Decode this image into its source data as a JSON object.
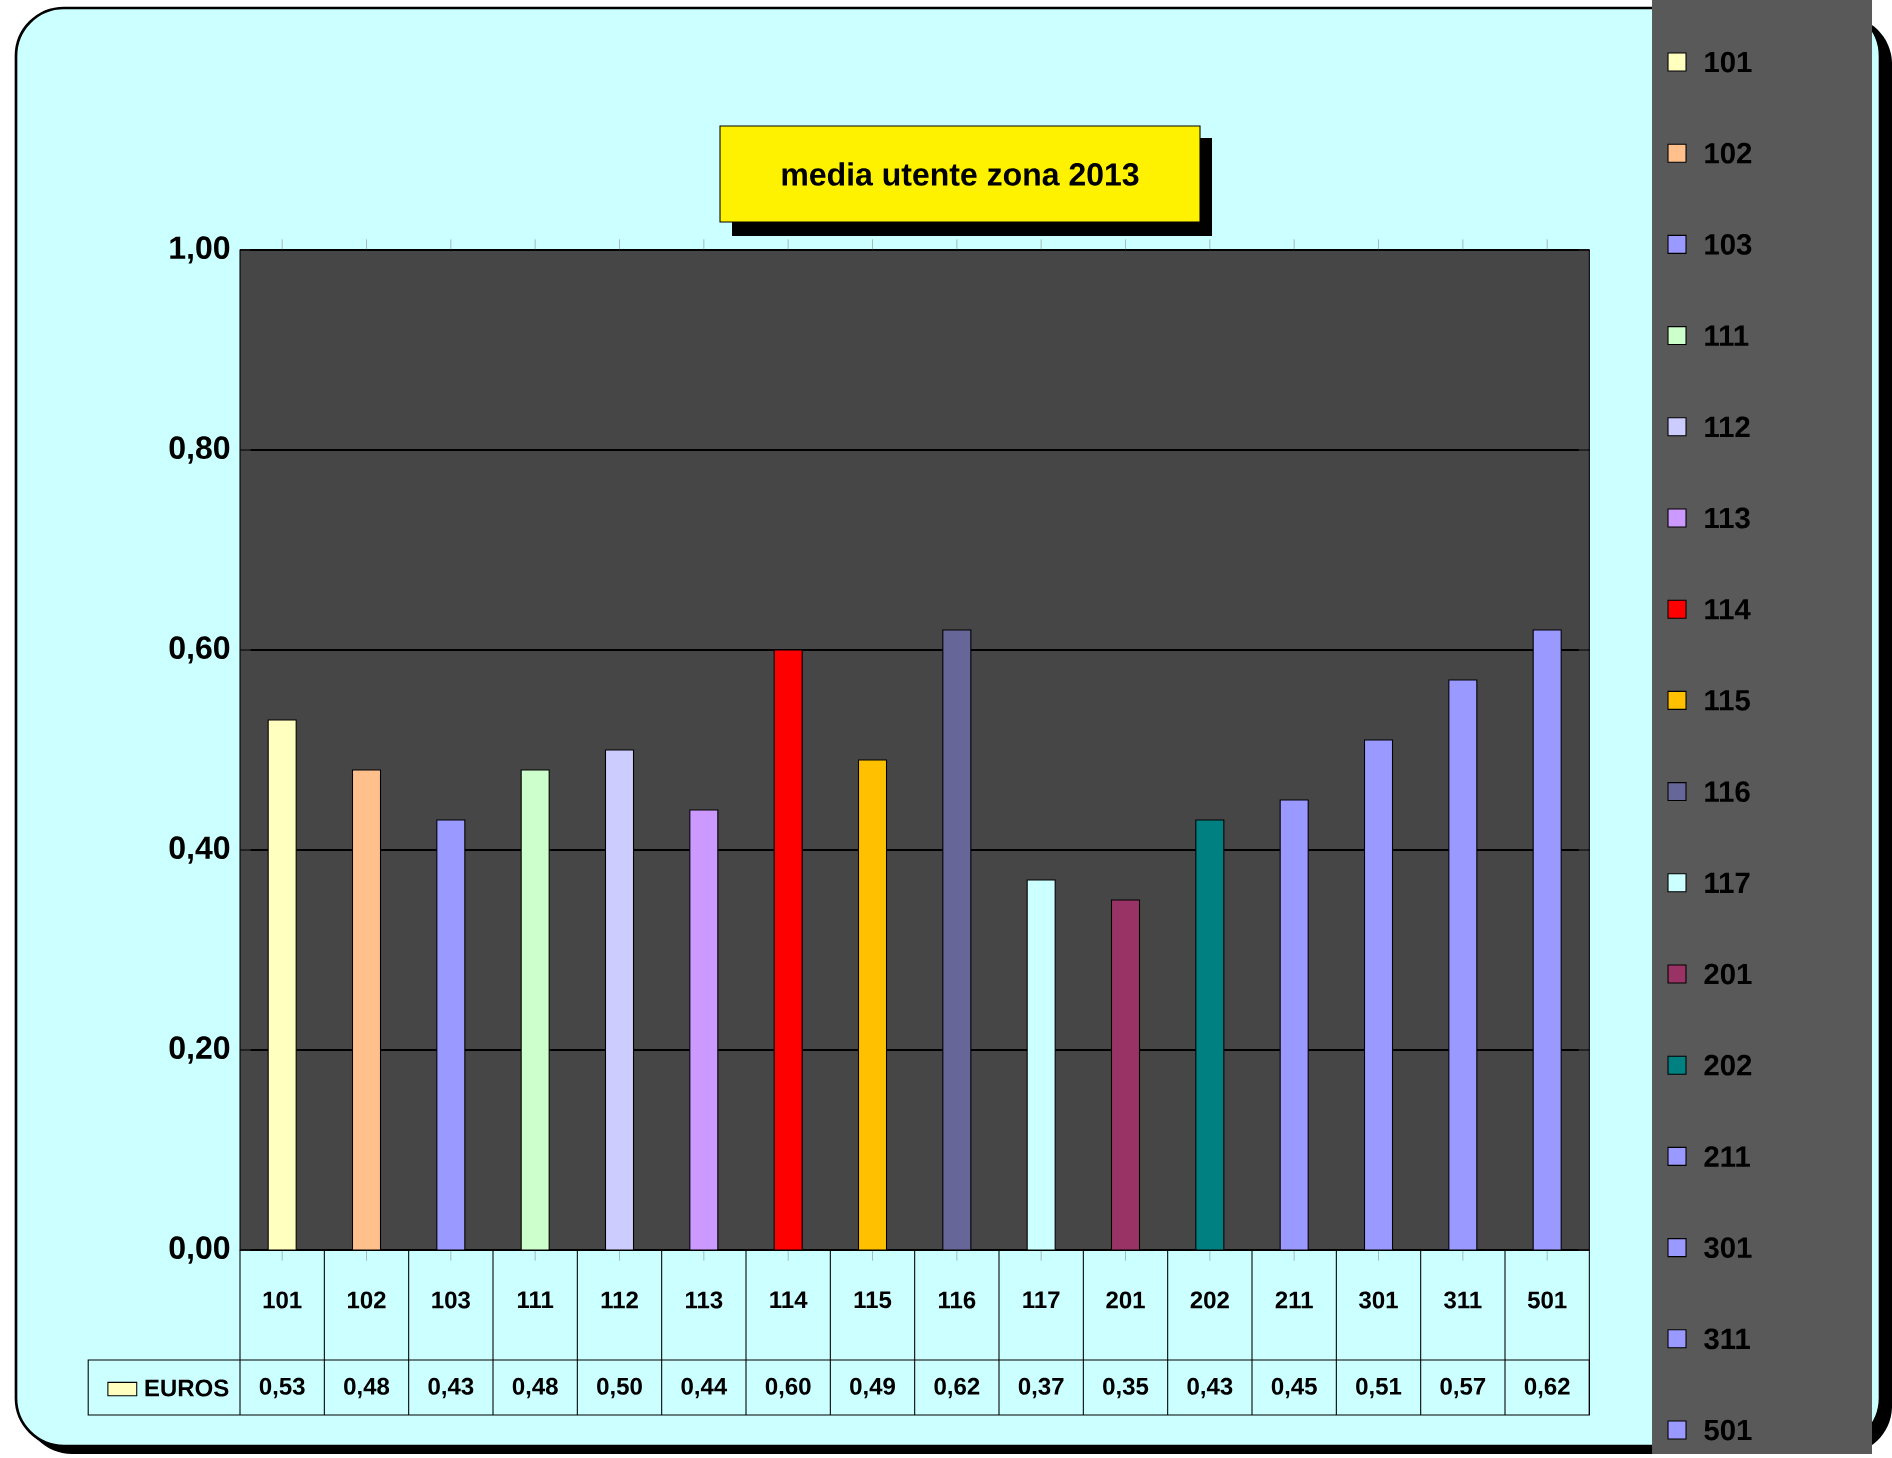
{
  "chart_data": {
    "type": "bar",
    "title": "media utente zona 2013",
    "categories": [
      "101",
      "102",
      "103",
      "111",
      "112",
      "113",
      "114",
      "115",
      "116",
      "117",
      "201",
      "202",
      "211",
      "301",
      "311",
      "501"
    ],
    "series": [
      {
        "name": "EUROS",
        "colors": [
          "#ffffc0",
          "#ffc08c",
          "#9999ff",
          "#ccffcc",
          "#ccccff",
          "#cc99ff",
          "#ff0000",
          "#ffc000",
          "#666699",
          "#ccffff",
          "#993366",
          "#008080",
          "#9999ff",
          "#9999ff",
          "#9999ff",
          "#9999ff"
        ],
        "values": [
          0.53,
          0.48,
          0.43,
          0.48,
          0.5,
          0.44,
          0.6,
          0.49,
          0.62,
          0.37,
          0.35,
          0.43,
          0.45,
          0.51,
          0.57,
          0.62
        ],
        "value_labels": [
          "0,53",
          "0,48",
          "0,43",
          "0,48",
          "0,50",
          "0,44",
          "0,60",
          "0,49",
          "0,62",
          "0,37",
          "0,35",
          "0,43",
          "0,45",
          "0,51",
          "0,57",
          "0,62"
        ]
      }
    ],
    "ylim": [
      0,
      1
    ],
    "yticks": [
      {
        "value": 0,
        "label": "0,00"
      },
      {
        "value": 0.2,
        "label": "0,20"
      },
      {
        "value": 0.4,
        "label": "0,40"
      },
      {
        "value": 0.6,
        "label": "0,60"
      },
      {
        "value": 0.8,
        "label": "0,80"
      },
      {
        "value": 1,
        "label": "1,00"
      }
    ],
    "grid": "y",
    "legend": "bottom left"
  }
}
